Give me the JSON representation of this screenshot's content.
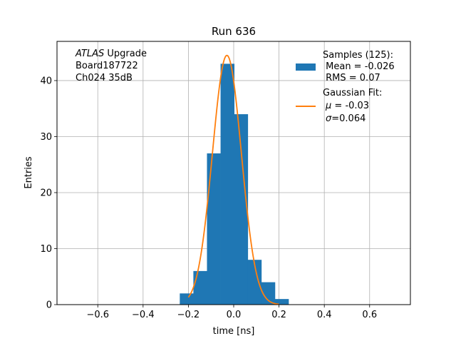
{
  "chart_data": {
    "type": "bar",
    "title": "Run 636",
    "xlabel": "time [ns]",
    "ylabel": "Entries",
    "xlim": [
      -0.78,
      0.78
    ],
    "ylim": [
      0,
      47
    ],
    "xticks": [
      -0.6,
      -0.4,
      -0.2,
      0.0,
      0.2,
      0.4,
      0.6
    ],
    "xtick_labels": [
      "−0.6",
      "−0.4",
      "−0.2",
      "0.0",
      "0.2",
      "0.4",
      "0.6"
    ],
    "yticks": [
      0,
      10,
      20,
      30,
      40
    ],
    "ytick_labels": [
      "0",
      "10",
      "20",
      "30",
      "40"
    ],
    "grid": true,
    "legend_placement": "top-right",
    "annotation_lines": [
      {
        "italic": "ATLAS",
        "rest": " Upgrade"
      },
      {
        "italic": "",
        "rest": " Board187722"
      },
      {
        "italic": "",
        "rest": " Ch024 35dB"
      }
    ],
    "histogram": {
      "name": "Samples (125):",
      "stats": [
        " Mean = -0.026",
        " RMS = 0.07"
      ],
      "color": "#1f77b4",
      "bin_edges": [
        -0.238,
        -0.178,
        -0.118,
        -0.058,
        0.002,
        0.062,
        0.122,
        0.182,
        0.242
      ],
      "counts": [
        2,
        6,
        27,
        43,
        34,
        8,
        4,
        1
      ]
    },
    "fit": {
      "name": "Gaussian Fit:",
      "params": [
        {
          "symbol": "μ",
          "text": " = -0.03"
        },
        {
          "symbol": "σ",
          "text": "=0.064"
        }
      ],
      "color": "#ff7f0e",
      "mu": -0.03,
      "sigma": 0.064,
      "amplitude": 44.5,
      "x_range": [
        -0.2,
        0.2
      ]
    }
  }
}
